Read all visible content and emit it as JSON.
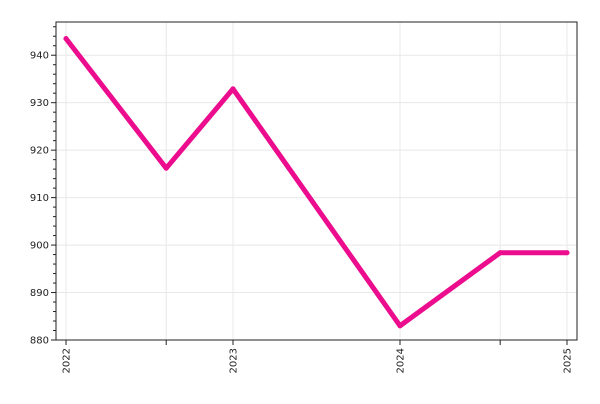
{
  "chart_data": {
    "type": "line",
    "title": "",
    "xlabel": "",
    "ylabel": "",
    "x_tick_labels": [
      "2022",
      "2023",
      "2024",
      "2025"
    ],
    "x_tick_values": [
      2022.0,
      2023.0,
      2024.0,
      2025.0
    ],
    "xlim": [
      2021.94,
      2025.06
    ],
    "ylim": [
      880,
      947
    ],
    "y_ticks": [
      880,
      890,
      900,
      910,
      920,
      930,
      940
    ],
    "grid": true,
    "legend": "none",
    "series": [
      {
        "color": "#ec0c8e",
        "x": [
          2022.0,
          2022.6,
          2023.0,
          2024.0,
          2024.6,
          2025.0
        ],
        "y": [
          943.5,
          916.2,
          932.9,
          883.0,
          898.4,
          898.4
        ]
      }
    ]
  }
}
